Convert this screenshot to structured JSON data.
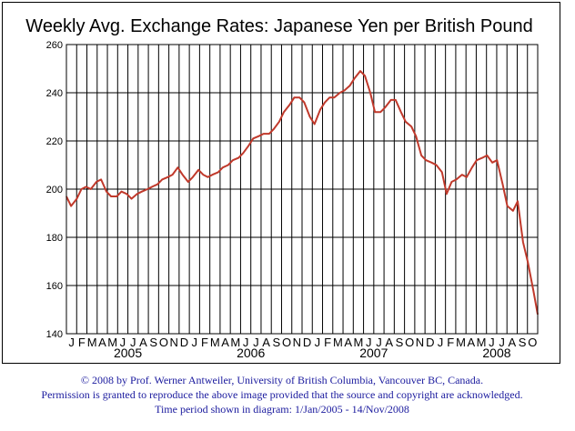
{
  "chart_data": {
    "type": "line",
    "title": "Weekly Avg. Exchange Rates: Japanese Yen per British Pound",
    "xlabel": "",
    "ylabel": "",
    "ylim": [
      140,
      260
    ],
    "y_ticks": [
      "140",
      "160",
      "180",
      "200",
      "220",
      "240",
      "260"
    ],
    "x_range": [
      "2005-01-01",
      "2008-11-14"
    ],
    "month_labels": [
      "J",
      "F",
      "M",
      "A",
      "M",
      "J",
      "J",
      "A",
      "S",
      "O",
      "N",
      "D",
      "J",
      "F",
      "M",
      "A",
      "M",
      "J",
      "J",
      "A",
      "S",
      "O",
      "N",
      "D",
      "J",
      "F",
      "M",
      "A",
      "M",
      "J",
      "J",
      "A",
      "S",
      "O",
      "N",
      "D",
      "J",
      "F",
      "M",
      "A",
      "M",
      "J",
      "J",
      "A",
      "S",
      "O"
    ],
    "year_labels": [
      {
        "label": "2005",
        "month_index": 6
      },
      {
        "label": "2006",
        "month_index": 18
      },
      {
        "label": "2007",
        "month_index": 30
      },
      {
        "label": "2008",
        "month_index": 42
      }
    ],
    "grid": true,
    "line_color": "#c0392b",
    "series": [
      {
        "name": "",
        "x": [
          "2005-01-01",
          "2005-01-15",
          "2005-02-01",
          "2005-02-15",
          "2005-03-01",
          "2005-03-15",
          "2005-04-01",
          "2005-04-15",
          "2005-05-01",
          "2005-05-15",
          "2005-06-01",
          "2005-06-15",
          "2005-07-01",
          "2005-07-15",
          "2005-08-01",
          "2005-08-15",
          "2005-09-01",
          "2005-09-15",
          "2005-10-01",
          "2005-10-15",
          "2005-11-01",
          "2005-11-15",
          "2005-12-01",
          "2005-12-15",
          "2006-01-01",
          "2006-01-15",
          "2006-02-01",
          "2006-02-15",
          "2006-03-01",
          "2006-03-15",
          "2006-04-01",
          "2006-04-15",
          "2006-05-01",
          "2006-05-15",
          "2006-06-01",
          "2006-06-15",
          "2006-07-01",
          "2006-07-15",
          "2006-08-01",
          "2006-08-15",
          "2006-09-01",
          "2006-09-15",
          "2006-10-01",
          "2006-10-15",
          "2006-11-01",
          "2006-11-15",
          "2006-12-01",
          "2006-12-15",
          "2007-01-01",
          "2007-01-15",
          "2007-02-01",
          "2007-02-15",
          "2007-03-01",
          "2007-03-15",
          "2007-04-01",
          "2007-04-15",
          "2007-05-01",
          "2007-05-15",
          "2007-06-01",
          "2007-06-15",
          "2007-07-01",
          "2007-07-15",
          "2007-08-01",
          "2007-08-15",
          "2007-09-01",
          "2007-09-15",
          "2007-10-01",
          "2007-10-15",
          "2007-11-01",
          "2007-11-15",
          "2007-12-01",
          "2007-12-15",
          "2008-01-01",
          "2008-01-15",
          "2008-02-01",
          "2008-02-15",
          "2008-03-01",
          "2008-03-15",
          "2008-04-01",
          "2008-04-15",
          "2008-05-01",
          "2008-05-15",
          "2008-06-01",
          "2008-06-15",
          "2008-07-01",
          "2008-07-15",
          "2008-08-01",
          "2008-08-15",
          "2008-09-01",
          "2008-09-15",
          "2008-10-01",
          "2008-10-15",
          "2008-11-01",
          "2008-11-14"
        ],
        "y": [
          197,
          193,
          196,
          200,
          201,
          200,
          203,
          204,
          199,
          197,
          197,
          199,
          198,
          196,
          198,
          199,
          200,
          201,
          202,
          204,
          205,
          206,
          209,
          206,
          203,
          205,
          208,
          206,
          205,
          206,
          207,
          209,
          210,
          212,
          213,
          215,
          218,
          221,
          222,
          223,
          223,
          225,
          228,
          232,
          235,
          238,
          238,
          236,
          230,
          227,
          233,
          236,
          238,
          238,
          240,
          241,
          243,
          246,
          249,
          247,
          240,
          232,
          232,
          234,
          237,
          237,
          232,
          228,
          226,
          222,
          214,
          212,
          211,
          210,
          207,
          198,
          203,
          204,
          206,
          205,
          209,
          212,
          213,
          214,
          211,
          212,
          202,
          193,
          191,
          195,
          178,
          170,
          158,
          148
        ]
      }
    ]
  },
  "credits": {
    "line1": "© 2008 by Prof. Werner Antweiler, University of British Columbia, Vancouver BC, Canada.",
    "line2": "Permission is granted to reproduce the above image provided that the source and copyright are acknowledged.",
    "line3": "Time period shown in diagram: 1/Jan/2005 - 14/Nov/2008"
  }
}
